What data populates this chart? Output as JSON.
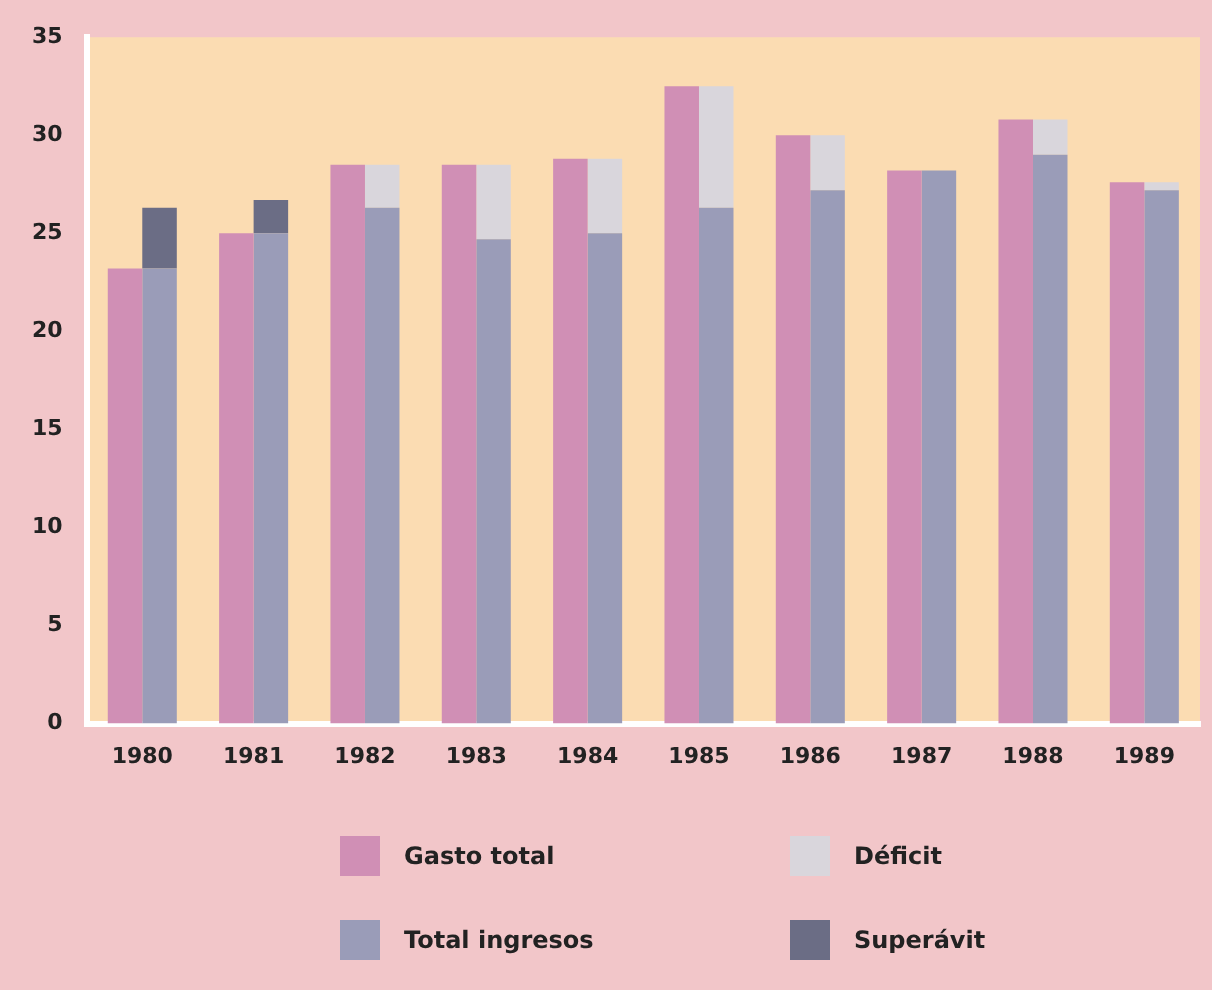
{
  "chart_data": {
    "type": "bar",
    "categories": [
      "1980",
      "1981",
      "1982",
      "1983",
      "1984",
      "1985",
      "1986",
      "1987",
      "1988",
      "1989"
    ],
    "series": [
      {
        "name": "Gasto total",
        "color": "#d08fb5",
        "values": [
          23.2,
          25.0,
          28.5,
          28.5,
          28.8,
          32.5,
          30.0,
          28.2,
          30.8,
          27.6
        ]
      },
      {
        "name": "Total ingresos",
        "color": "#9a9cb8",
        "base": [
          0,
          0,
          0,
          0,
          0,
          0,
          0,
          0,
          0,
          0
        ],
        "values": [
          23.2,
          25.0,
          26.3,
          24.7,
          25.0,
          26.3,
          27.2,
          28.2,
          29.0,
          27.2
        ]
      },
      {
        "name": "Déficit",
        "color": "#d9d6dc",
        "base": [
          null,
          null,
          26.3,
          24.7,
          25.0,
          26.3,
          27.2,
          null,
          29.0,
          27.2
        ],
        "values": [
          null,
          null,
          2.2,
          3.8,
          3.8,
          6.2,
          2.8,
          null,
          1.8,
          0.4
        ]
      },
      {
        "name": "Superávit",
        "color": "#6b6d85",
        "base": [
          23.2,
          25.0,
          null,
          null,
          null,
          null,
          null,
          null,
          null,
          null
        ],
        "values": [
          3.1,
          1.7,
          null,
          null,
          null,
          null,
          null,
          null,
          null,
          null
        ]
      }
    ],
    "ylim": [
      0,
      35
    ],
    "yticks": [
      0,
      5,
      10,
      15,
      20,
      25,
      30,
      35
    ],
    "grid": false,
    "legend": "bottom"
  }
}
